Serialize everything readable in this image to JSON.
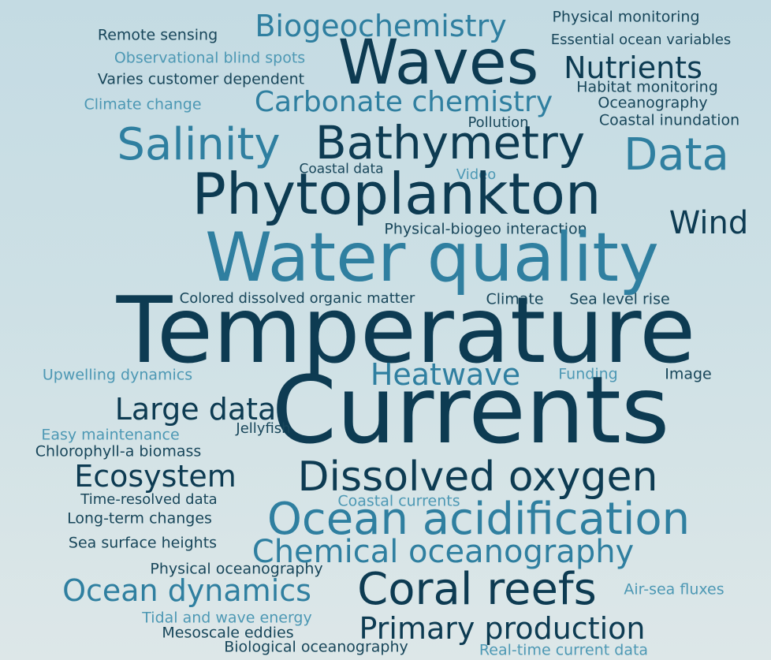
{
  "words": {
    "biogeochemistry": "Biogeochemistry",
    "physical_monitoring": "Physical monitoring",
    "remote_sensing": "Remote sensing",
    "essential_ocean_variables": "Essential ocean variables",
    "observational_blind_spots": "Observational blind spots",
    "waves": "Waves",
    "nutrients": "Nutrients",
    "varies_customer_dependent": "Varies customer dependent",
    "habitat_monitoring": "Habitat monitoring",
    "climate_change": "Climate change",
    "carbonate_chemistry": "Carbonate chemistry",
    "oceanography": "Oceanography",
    "pollution": "Pollution",
    "coastal_inundation": "Coastal inundation",
    "salinity": "Salinity",
    "bathymetry": "Bathymetry",
    "data": "Data",
    "coastal_data": "Coastal data",
    "video": "Video",
    "phytoplankton": "Phytoplankton",
    "wind": "Wind",
    "physical_biogeo_interaction": "Physical-biogeo interaction",
    "water_quality": "Water quality",
    "colored_dissolved_organic_matter": "Colored dissolved organic matter",
    "climate": "Climate",
    "sea_level_rise": "Sea level rise",
    "temperature": "Temperature",
    "upwelling_dynamics": "Upwelling dynamics",
    "heatwave": "Heatwave",
    "funding": "Funding",
    "image": "Image",
    "large_data": "Large data",
    "currents": "Currents",
    "easy_maintenance": "Easy maintenance",
    "jellyfish": "Jellyfish",
    "chlorophyll_a_biomass": "Chlorophyll-a biomass",
    "ecosystem": "Ecosystem",
    "dissolved_oxygen": "Dissolved oxygen",
    "time_resolved_data": "Time-resolved data",
    "coastal_currents": "Coastal currents",
    "long_term_changes": "Long-term changes",
    "ocean_acidification": "Ocean acidification",
    "sea_surface_heights": "Sea surface heights",
    "chemical_oceanography": "Chemical oceanography",
    "physical_oceanography": "Physical oceanography",
    "ocean_dynamics": "Ocean dynamics",
    "coral_reefs": "Coral reefs",
    "air_sea_fluxes": "Air-sea fluxes",
    "tidal_and_wave_energy": "Tidal and wave energy",
    "mesoscale_eddies": "Mesoscale eddies",
    "primary_production": "Primary production",
    "biological_oceanography": "Biological oceanography",
    "real_time_current_data": "Real-time current data"
  },
  "colors": {
    "dark": "#0d3b52",
    "dark2": "#18465a",
    "mid": "#2f7fa0",
    "light": "#4d98b4",
    "background_top": "#c4dbe3",
    "background_bottom": "#dde7e8"
  }
}
